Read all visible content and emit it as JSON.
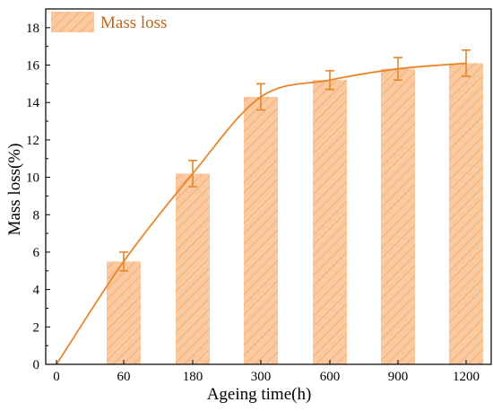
{
  "chart_data": {
    "type": "bar",
    "categories": [
      "0",
      "60",
      "180",
      "300",
      "600",
      "900",
      "1200"
    ],
    "series": [
      {
        "name": "Mass loss",
        "values": [
          null,
          5.5,
          10.2,
          14.3,
          15.2,
          15.8,
          16.1
        ],
        "error": [
          null,
          0.5,
          0.7,
          0.7,
          0.5,
          0.6,
          0.7
        ]
      }
    ],
    "trend_line": [
      0,
      5.5,
      10.2,
      14.3,
      15.2,
      15.8,
      16.1
    ],
    "xlabel": "Ageing time(h)",
    "ylabel": "Mass loss(%)",
    "ylim": [
      0,
      19
    ],
    "yticks": [
      0,
      2,
      4,
      6,
      8,
      10,
      12,
      14,
      16,
      18
    ],
    "legend_position": "top-left",
    "grid": false,
    "bar_pattern": "diagonal-hatch",
    "colors": {
      "bar_fill": "#fbc9a0",
      "hatch": "#f0a165",
      "line": "#e8862a",
      "legend_text": "#c0651a",
      "axis": "#000000"
    }
  }
}
